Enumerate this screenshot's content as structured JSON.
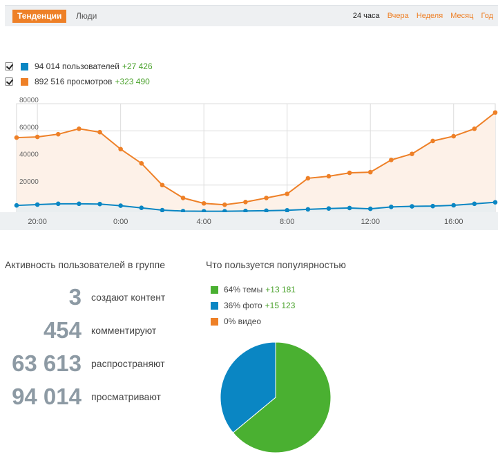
{
  "header": {
    "tabs": [
      {
        "label": "Тенденции",
        "active": true
      },
      {
        "label": "Люди",
        "active": false
      }
    ],
    "periods": [
      {
        "label": "24 часа",
        "current": true
      },
      {
        "label": "Вчера"
      },
      {
        "label": "Неделя"
      },
      {
        "label": "Месяц"
      },
      {
        "label": "Год"
      }
    ]
  },
  "legend": [
    {
      "checked": true,
      "color": "#0a86c3",
      "text": "94 014 пользователей",
      "delta": "+27 426"
    },
    {
      "checked": true,
      "color": "#ee8027",
      "text": "892 516 просмотров",
      "delta": "+323 490"
    }
  ],
  "activity": {
    "title": "Активность пользователей в группе",
    "items": [
      {
        "value": "3",
        "label": "создают контент"
      },
      {
        "value": "454",
        "label": "комментируют"
      },
      {
        "value": "63 613",
        "label": "распространяют"
      },
      {
        "value": "94 014",
        "label": "просматривают"
      }
    ]
  },
  "popular": {
    "title": "Что пользуется популярностью",
    "items": [
      {
        "color": "#4ab031",
        "text": "64% темы",
        "delta": "+13 181"
      },
      {
        "color": "#0a86c3",
        "text": "36% фото",
        "delta": "+15 123"
      },
      {
        "color": "#ee8027",
        "text": "0% видео",
        "delta": ""
      }
    ]
  },
  "chart_data": [
    {
      "type": "area",
      "x": [
        "19:00",
        "20:00",
        "21:00",
        "22:00",
        "23:00",
        "0:00",
        "1:00",
        "2:00",
        "3:00",
        "4:00",
        "5:00",
        "6:00",
        "7:00",
        "8:00",
        "9:00",
        "10:00",
        "11:00",
        "12:00",
        "13:00",
        "14:00",
        "15:00",
        "16:00",
        "17:00",
        "18:00"
      ],
      "xticks": [
        "20:00",
        "0:00",
        "4:00",
        "8:00",
        "12:00",
        "16:00"
      ],
      "yticks": [
        20000,
        40000,
        60000,
        80000
      ],
      "ylim": [
        0,
        80000
      ],
      "grid": true,
      "series": [
        {
          "color": "#ee8027",
          "fill": "#fdf1e8",
          "values": [
            55000,
            55500,
            57500,
            61500,
            59000,
            46500,
            36000,
            20000,
            10500,
            6500,
            5500,
            7500,
            10500,
            13500,
            25000,
            26500,
            29000,
            29500,
            38500,
            43000,
            52500,
            56000,
            61500,
            73500
          ]
        },
        {
          "color": "#0a86c3",
          "fill": "#e9eef0",
          "values": [
            5000,
            5600,
            6200,
            6200,
            6000,
            4800,
            3200,
            1500,
            800,
            700,
            700,
            900,
            1100,
            1400,
            2100,
            2700,
            3100,
            2500,
            3900,
            4300,
            4500,
            5100,
            6200,
            7300
          ]
        }
      ]
    },
    {
      "type": "pie",
      "slices": [
        {
          "label": "темы",
          "value": 64,
          "color": "#4ab031"
        },
        {
          "label": "фото",
          "value": 36,
          "color": "#0a86c3"
        },
        {
          "label": "видео",
          "value": 0,
          "color": "#ee8027"
        }
      ]
    }
  ]
}
